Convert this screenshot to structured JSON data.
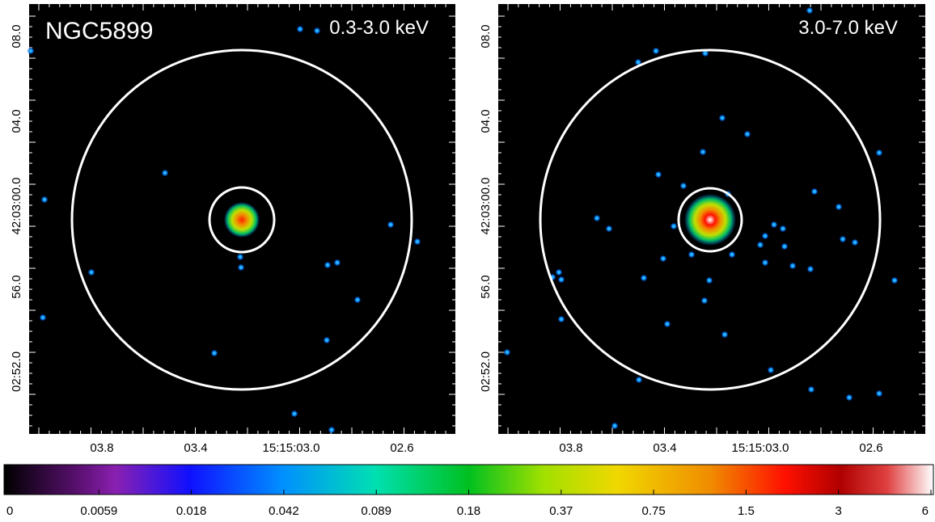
{
  "panels": [
    {
      "object": "NGC5899",
      "band": "0.3-3.0 keV",
      "y_labels": [
        "08.0",
        "04.0",
        "42:03:00.0",
        "56.0",
        "02:52.0"
      ],
      "x_labels": [
        "03.8",
        "03.4",
        "15:15:03.0",
        "02.6"
      ]
    },
    {
      "band": "3.0-7.0 keV",
      "y_labels": [
        "08.0",
        "04.0",
        "42:03:00.0",
        "56.0",
        "02:52.0"
      ],
      "x_labels": [
        "03.8",
        "03.4",
        "15:15:03.0",
        "02.6"
      ]
    }
  ],
  "colorbar": {
    "labels": [
      "0",
      "0.0059",
      "0.018",
      "0.042",
      "0.089",
      "0.18",
      "0.37",
      "0.75",
      "1.5",
      "3",
      "6"
    ]
  }
}
